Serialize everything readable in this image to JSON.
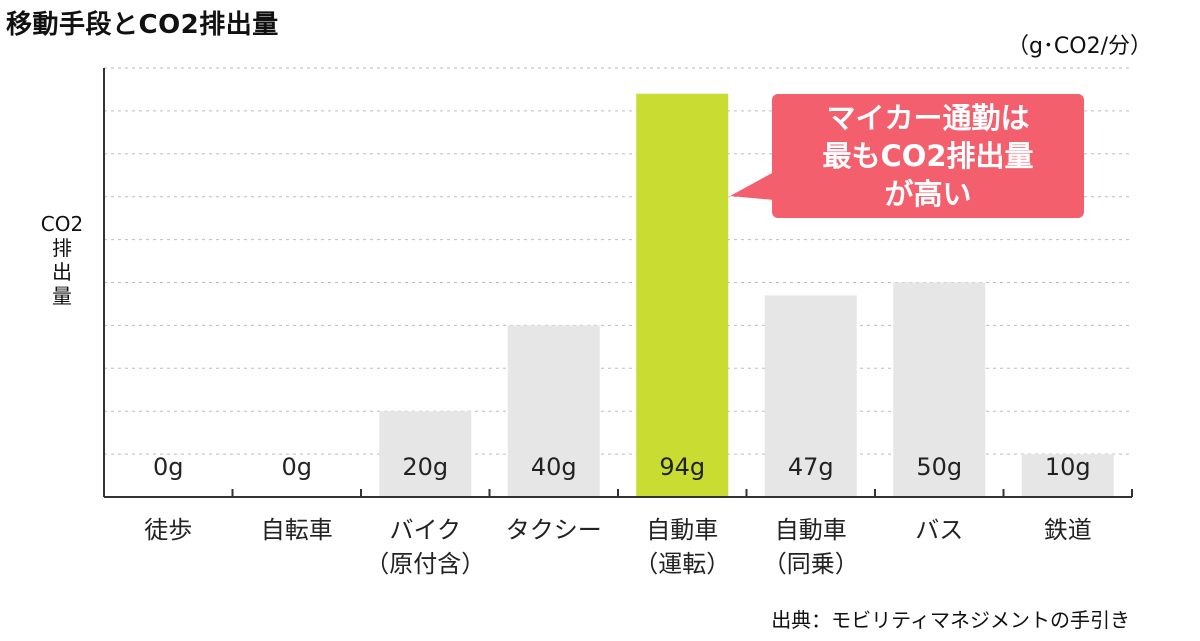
{
  "title": "移動手段とCO2排出量",
  "unit": "（g･CO2/分）",
  "ylabel_lines": [
    "CO2",
    "排",
    "出",
    "量"
  ],
  "callout_lines": [
    "マイカー通勤は",
    "最もCO2排出量",
    "が高い"
  ],
  "source": "出典：モビリティマネジメントの手引き",
  "colors": {
    "bar": "#e6e6e6",
    "highlight": "#c8dc32",
    "callout": "#f45f6e",
    "grid": "#bdbdbd",
    "axis": "#333333"
  },
  "chart_data": {
    "type": "bar",
    "categories": [
      [
        "徒歩"
      ],
      [
        "自転車"
      ],
      [
        "バイク",
        "（原付含）"
      ],
      [
        "タクシー"
      ],
      [
        "自動車",
        "（運転）"
      ],
      [
        "自動車",
        "（同乗）"
      ],
      [
        "バス"
      ],
      [
        "鉄道"
      ]
    ],
    "values": [
      0,
      0,
      20,
      40,
      94,
      47,
      50,
      10
    ],
    "value_labels": [
      "0g",
      "0g",
      "20g",
      "40g",
      "94g",
      "47g",
      "50g",
      "10g"
    ],
    "highlight_index": 4,
    "ylim": [
      0,
      100
    ],
    "grid": true,
    "title": "移動手段とCO2排出量",
    "ylabel": "CO2排出量"
  }
}
